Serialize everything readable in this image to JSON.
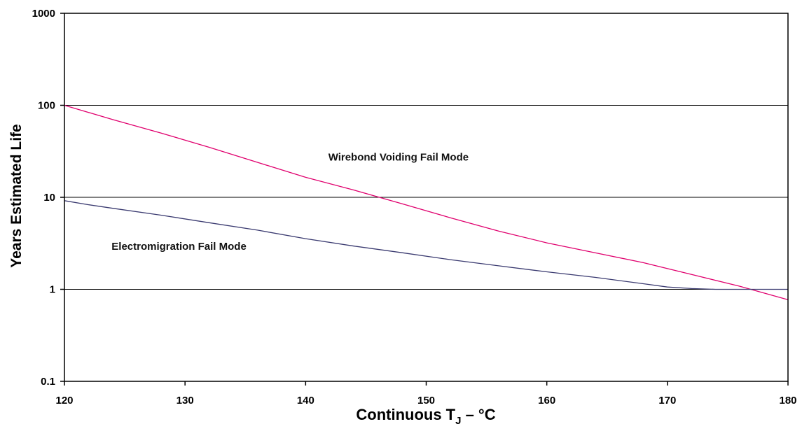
{
  "chart_data": {
    "type": "line",
    "xlabel": {
      "main": "Continuous T",
      "sub": "J",
      "tail": " – °C"
    },
    "ylabel": "Years Estimated Life",
    "xlim": [
      120,
      180
    ],
    "ylim": [
      0.1,
      1000
    ],
    "yscale": "log",
    "x_ticks": [
      120,
      130,
      140,
      150,
      160,
      170,
      180
    ],
    "y_ticks": [
      {
        "value": 0.1,
        "label": "0.1"
      },
      {
        "value": 1,
        "label": "1"
      },
      {
        "value": 10,
        "label": "10"
      },
      {
        "value": 100,
        "label": "100"
      },
      {
        "value": 1000,
        "label": "1000"
      }
    ],
    "grid": "horizontal",
    "series": [
      {
        "key": "wirebond",
        "color": "#e0006e",
        "x": [
          120,
          124,
          128,
          132,
          136,
          140,
          144,
          148,
          152,
          156,
          160,
          164,
          168,
          172,
          176,
          180
        ],
        "y": [
          100,
          70,
          50,
          35,
          24,
          16.5,
          12,
          8.5,
          6.0,
          4.3,
          3.2,
          2.5,
          1.95,
          1.45,
          1.08,
          0.77
        ]
      },
      {
        "key": "electromigration",
        "color": "#3a3a70",
        "x": [
          120,
          122,
          124,
          128,
          132,
          136,
          140,
          144,
          148,
          152,
          156,
          160,
          164,
          168,
          170,
          172,
          174,
          180
        ],
        "y": [
          9.2,
          8.3,
          7.6,
          6.4,
          5.3,
          4.4,
          3.55,
          2.95,
          2.5,
          2.1,
          1.8,
          1.55,
          1.35,
          1.15,
          1.06,
          1.02,
          1.0,
          1.0
        ]
      }
    ],
    "annotations": [
      {
        "text": "Wirebond Voiding Fail Mode",
        "x": 147.7,
        "y": 25
      },
      {
        "text": "Electromigration Fail Mode",
        "x": 129.5,
        "y": 2.7
      }
    ]
  }
}
